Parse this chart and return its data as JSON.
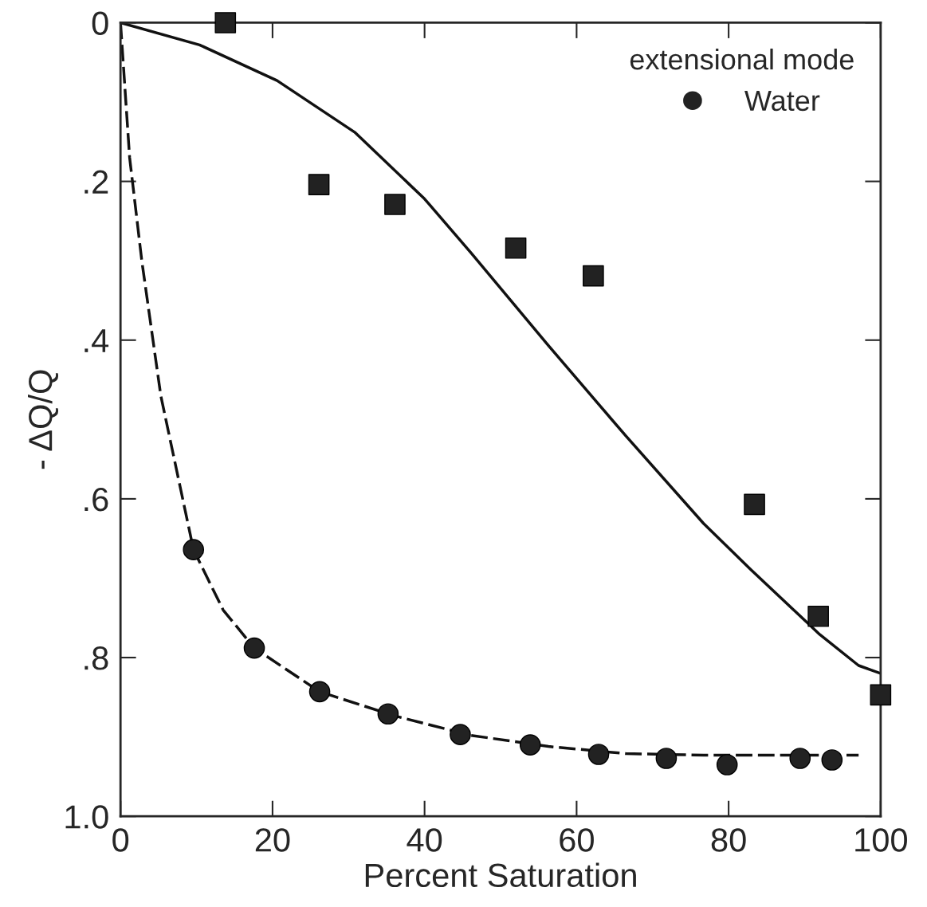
{
  "chart_data": {
    "type": "scatter",
    "xlabel": "Percent Saturation",
    "ylabel": "- ΔQ/Q",
    "legend_title": "extensional mode",
    "xlim": [
      0,
      100
    ],
    "xticks": [
      0,
      20,
      40,
      60,
      80,
      100
    ],
    "ylim": [
      1.0,
      0
    ],
    "yticks": [
      {
        "value": 0,
        "label": "0"
      },
      {
        "value": 0.2,
        "label": ".2"
      },
      {
        "value": 0.4,
        "label": ".4"
      },
      {
        "value": 0.6,
        "label": ".6"
      },
      {
        "value": 0.8,
        "label": ".8"
      },
      {
        "value": 1.0,
        "label": "1.0"
      }
    ],
    "grid": false,
    "legend": "top right",
    "series": [
      {
        "type": "line",
        "color": "#111111",
        "line_style": "solid",
        "marker": "none",
        "x": [
          0,
          10.4,
          20.6,
          30.8,
          40,
          46.1,
          56.3,
          66.5,
          76.7,
          82.9,
          92,
          97.1,
          100
        ],
        "values": [
          0,
          0.028,
          0.073,
          0.138,
          0.222,
          0.29,
          0.407,
          0.521,
          0.631,
          0.689,
          0.771,
          0.81,
          0.82
        ]
      },
      {
        "type": "line",
        "color": "#111111",
        "line_style": "dashed",
        "marker": "none",
        "x": [
          0,
          1.2,
          2.8,
          5.3,
          9.6,
          13.5,
          17.6,
          26.2,
          35.9,
          46.1,
          56.3,
          66.5,
          76.7,
          86.9,
          97.1
        ],
        "values": [
          0,
          0.17,
          0.3,
          0.47,
          0.664,
          0.74,
          0.788,
          0.843,
          0.873,
          0.898,
          0.912,
          0.921,
          0.923,
          0.923,
          0.923
        ]
      },
      {
        "type": "scatter",
        "color": "#222222",
        "marker": "square",
        "x": [
          13.8,
          26.1,
          36.1,
          52.0,
          62.2,
          83.4,
          91.8,
          100
        ],
        "values": [
          0.0,
          0.204,
          0.229,
          0.284,
          0.319,
          0.607,
          0.748,
          0.847
        ]
      },
      {
        "type": "scatter",
        "name": "Water",
        "color": "#222222",
        "marker": "circle",
        "x": [
          9.6,
          17.6,
          26.2,
          35.2,
          44.7,
          53.9,
          62.9,
          71.8,
          79.8,
          89.4,
          93.6
        ],
        "values": [
          0.664,
          0.788,
          0.843,
          0.871,
          0.897,
          0.91,
          0.922,
          0.927,
          0.935,
          0.927,
          0.929
        ]
      }
    ]
  }
}
